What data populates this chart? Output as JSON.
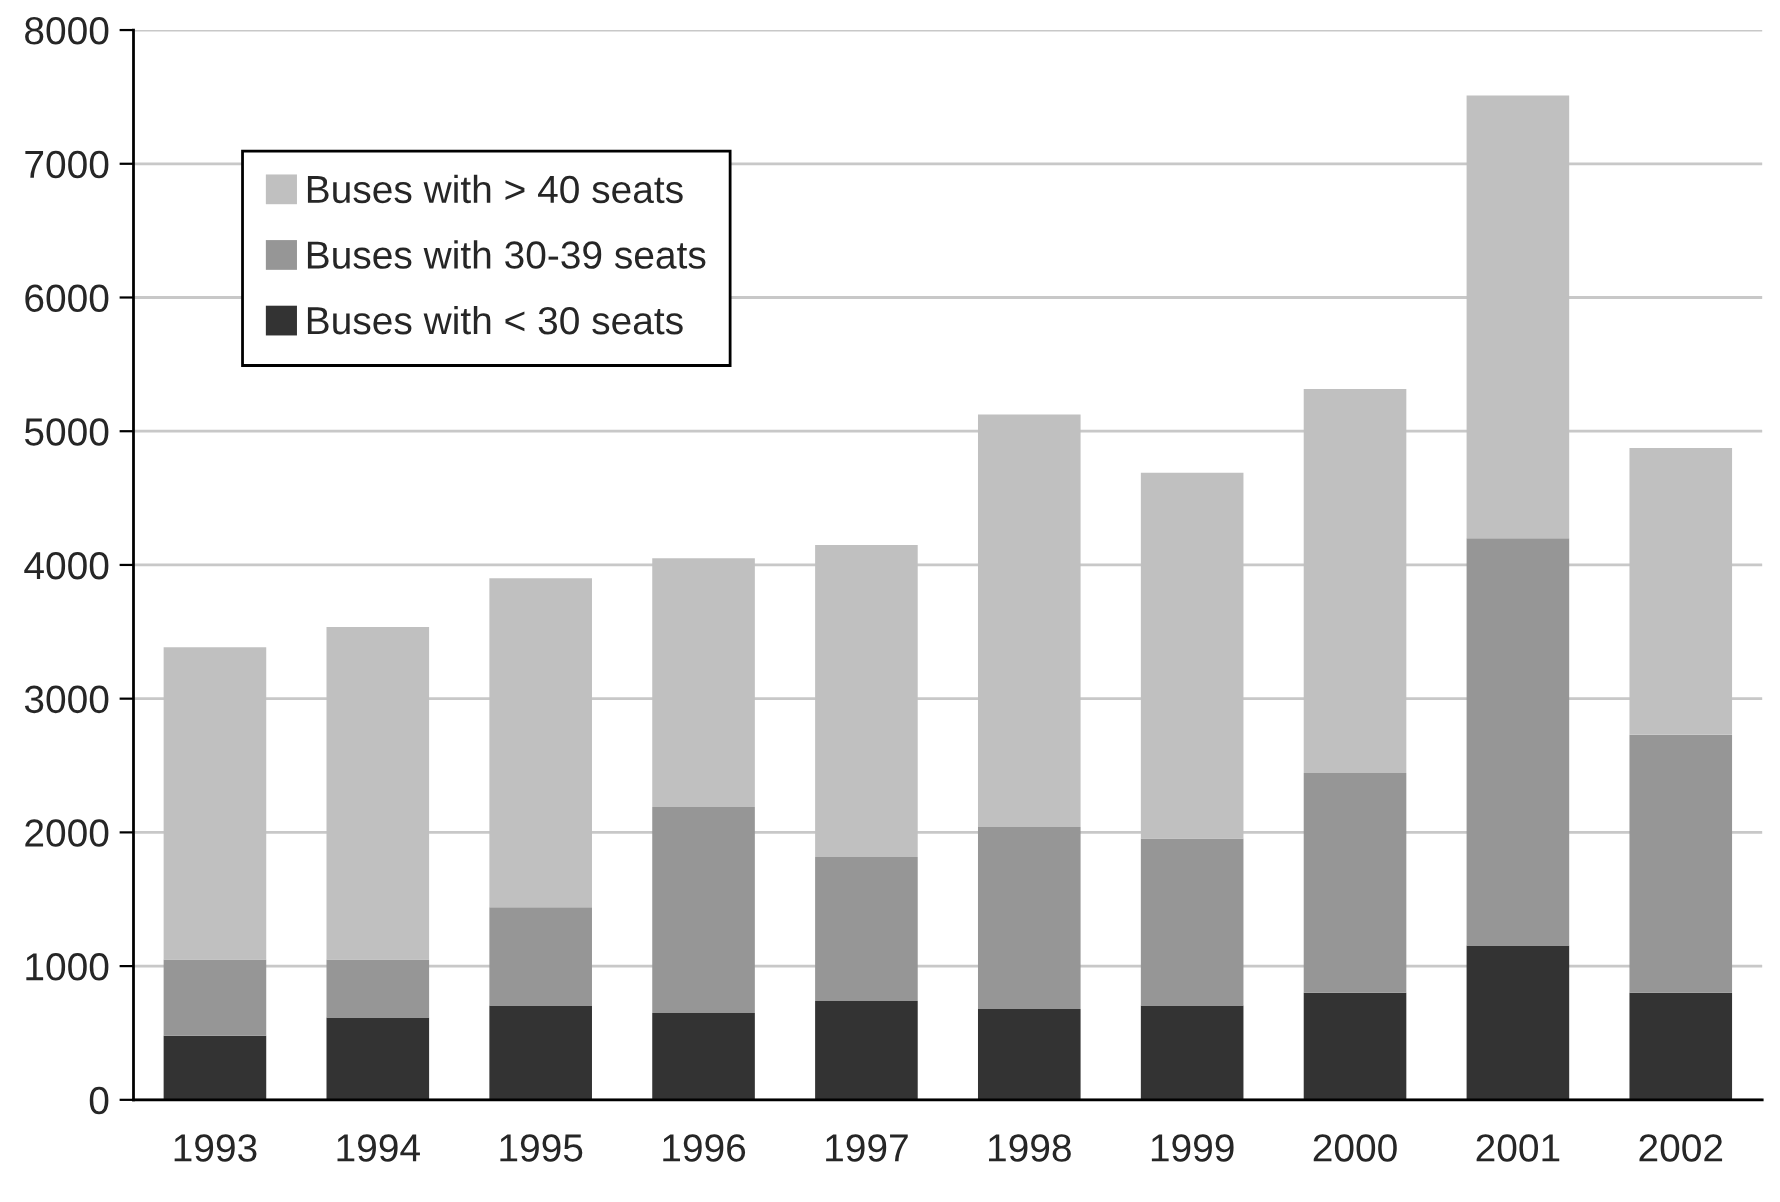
{
  "chart_data": {
    "type": "bar",
    "stacked": true,
    "categories": [
      "1993",
      "1994",
      "1995",
      "1996",
      "1997",
      "1998",
      "1999",
      "2000",
      "2001",
      "2002"
    ],
    "series": [
      {
        "name": "Buses with < 30 seats",
        "color": "#333333",
        "values": [
          480,
          615,
          705,
          650,
          740,
          680,
          705,
          800,
          1155,
          800
        ]
      },
      {
        "name": "Buses with 30-39 seats",
        "color": "#969696",
        "values": [
          570,
          435,
          735,
          1540,
          1075,
          1360,
          1250,
          1645,
          3045,
          1930
        ]
      },
      {
        "name": "Buses with > 40 seats",
        "color": "#c0c0c0",
        "values": [
          2335,
          2485,
          2460,
          1860,
          2335,
          3085,
          2735,
          2870,
          3310,
          2145
        ]
      }
    ],
    "ylim": [
      0,
      8000
    ],
    "yticks": [
      0,
      1000,
      2000,
      3000,
      4000,
      5000,
      6000,
      7000,
      8000
    ],
    "grid": "y",
    "legend": "top left"
  }
}
